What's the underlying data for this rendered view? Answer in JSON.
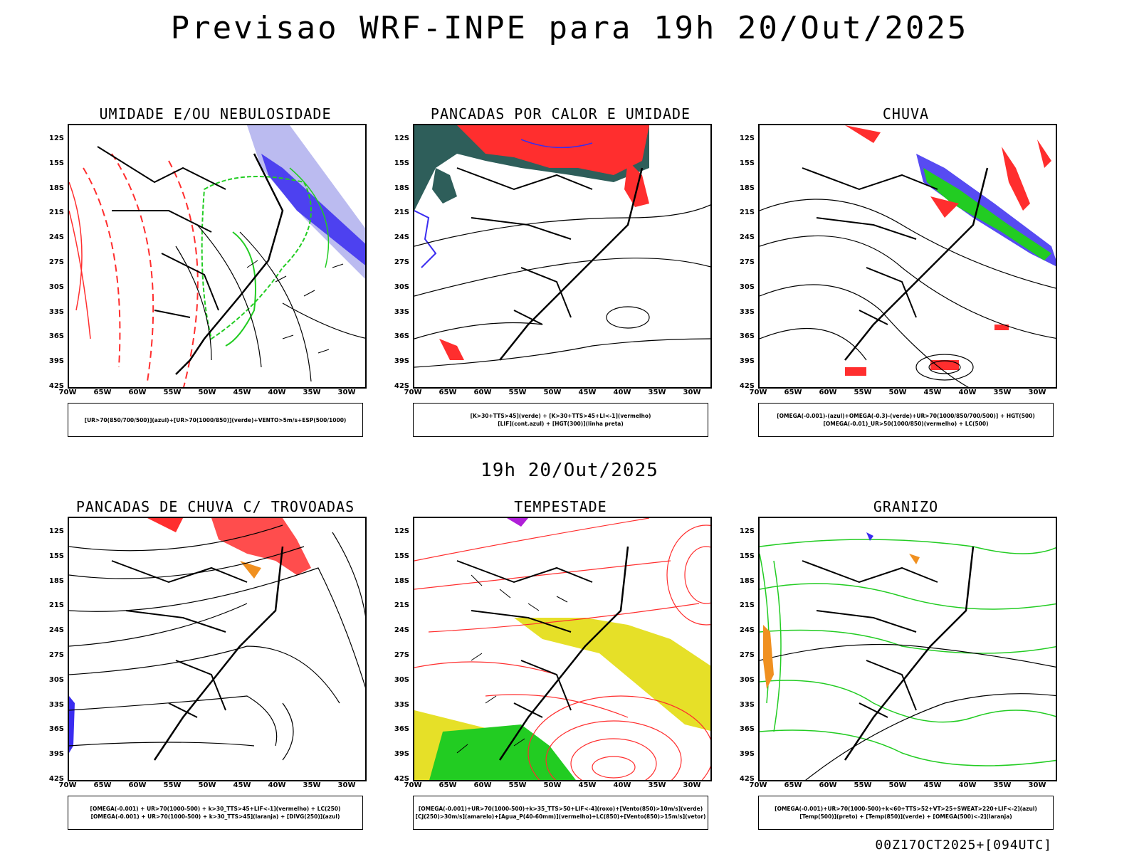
{
  "title": "Previsao WRF-INPE  para 19h 20/Out/2025",
  "mid_time": "19h 20/Out/2025",
  "footer": "00Z17OCT2025+[094UTC]",
  "lat_ticks": [
    "12S",
    "15S",
    "18S",
    "21S",
    "24S",
    "27S",
    "30S",
    "33S",
    "36S",
    "39S",
    "42S"
  ],
  "lon_ticks": [
    "70W",
    "65W",
    "60W",
    "55W",
    "50W",
    "45W",
    "40W",
    "35W",
    "30W"
  ],
  "colors": {
    "blue": "#3a2cf0",
    "lavender": "#b4b4ee",
    "green": "#22cc22",
    "red": "#ff2e2e",
    "teal": "#2e5e5a",
    "yellow": "#e6e028",
    "orange": "#f09020",
    "purple": "#b020d8"
  },
  "panels": [
    {
      "title": "UMIDADE E/OU NEBULOSIDADE",
      "legend": [
        "[UR>70(850/700/500)](azul)+[UR>70(1000/850)](verde)+VENTO>5m/s+ESP(500/1000)"
      ]
    },
    {
      "title": "PANCADAS POR CALOR E UMIDADE",
      "legend": [
        "[K>30+TTS>45](verde) + [K>30+TTS>45+LI<-1](vermelho)",
        "[LIF](cont.azul) + [HGT(300)](linha preta)"
      ]
    },
    {
      "title": "CHUVA",
      "legend": [
        "[OMEGA(-0.001)-(azul)+OMEGA(-0.3)-(verde)+UR>70(1000/850/700/500)] + HGT(500)",
        "[OMEGA(-0.01)_UR>50(1000/850)(vermelho) + LC(500)"
      ]
    },
    {
      "title": "PANCADAS DE CHUVA C/ TROVOADAS",
      "legend": [
        "[OMEGA(-0.001) + UR>70(1000-500) + k>30_TTS>45+LIF<-1](vermelho) + LC(250)",
        "[OMEGA(-0.001) + UR>70(1000-500) + k>30_TTS>45](laranja) + [DIVG(250)](azul)"
      ]
    },
    {
      "title": "TEMPESTADE",
      "legend": [
        "[OMEGA(-0.001)+UR>70(1000-500)+k>35_TTS>50+LIF<-4](roxo)+[Vento(850)>10m/s](verde)",
        "[CJ(250)>30m/s](amarelo)+[Agua_P(40-60mm)](vermelho)+LC(850)+[Vento(850)>15m/s](vetor)"
      ]
    },
    {
      "title": "GRANIZO",
      "legend": [
        "[OMEGA(-0.001)+UR>70(1000-500)+k<60+TTS>52+VT>25+SWEAT>220+LIF<-2](azul)",
        "[Temp(500)](preto) + [Temp(850)](verde) + [OMEGA(500)<-2](laranja)"
      ]
    }
  ]
}
